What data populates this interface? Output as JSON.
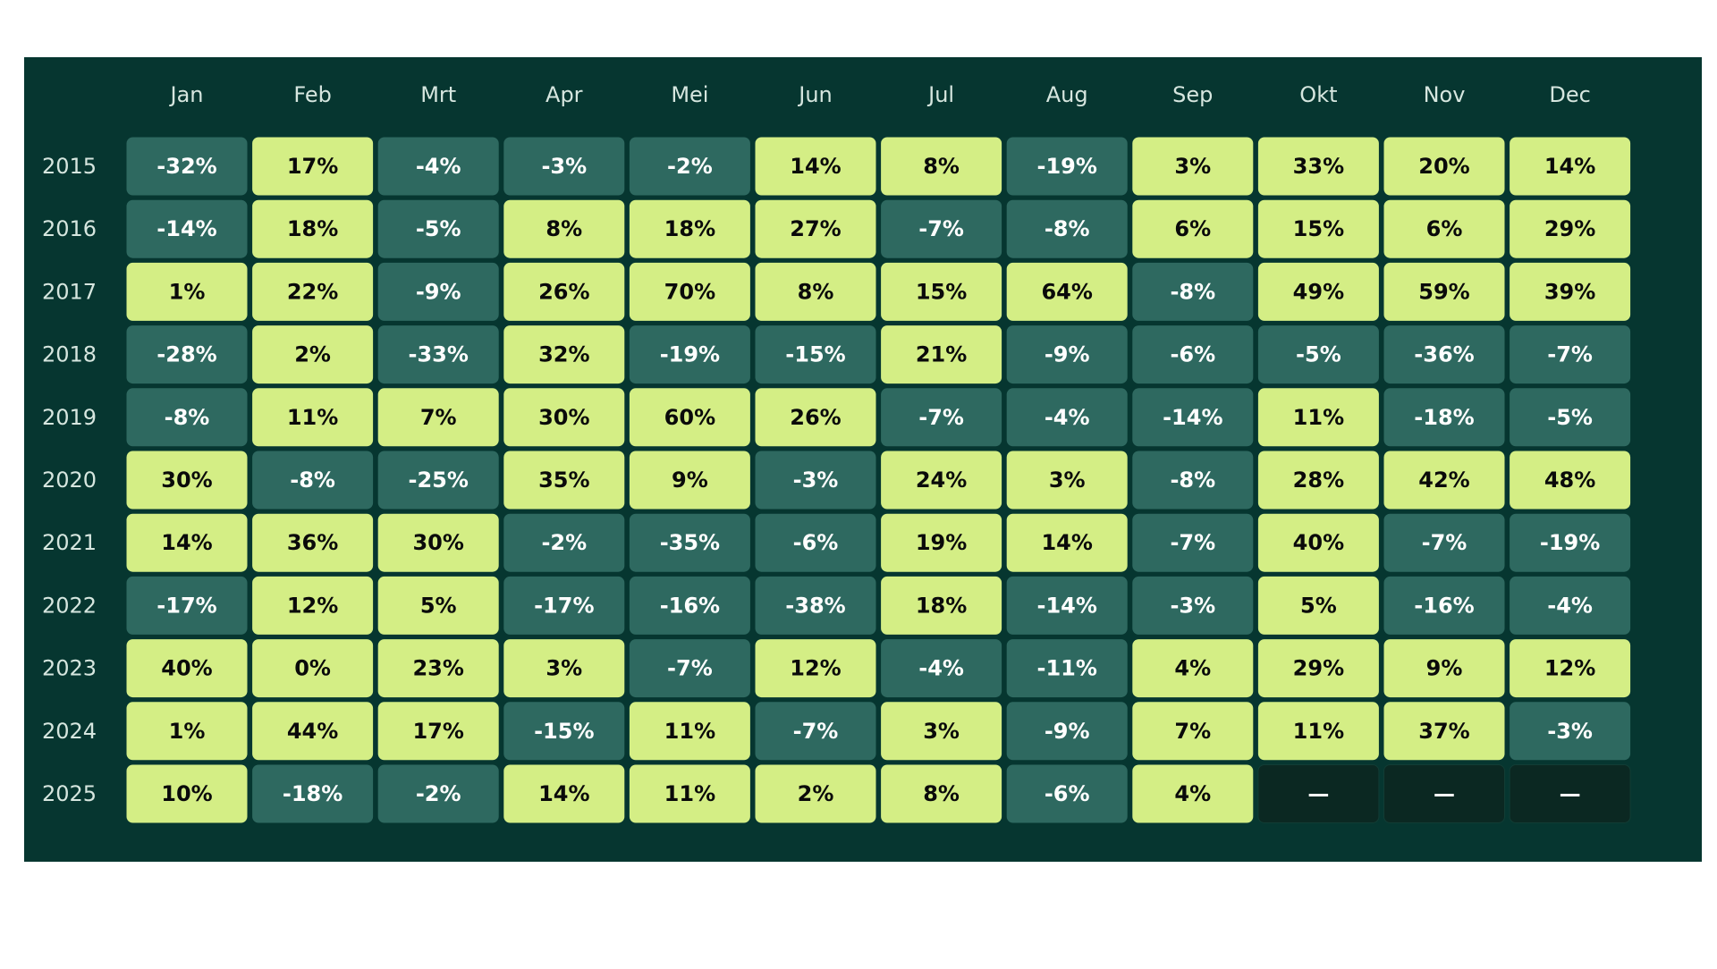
{
  "table": {
    "columns": [
      "Jan",
      "Feb",
      "Mrt",
      "Apr",
      "Mei",
      "Jun",
      "Jul",
      "Aug",
      "Sep",
      "Okt",
      "Nov",
      "Dec"
    ],
    "rows": [
      {
        "label": "2015",
        "cells": [
          "-32%",
          "17%",
          "-4%",
          "-3%",
          "-2%",
          "14%",
          "8%",
          "-19%",
          "3%",
          "33%",
          "20%",
          "14%"
        ]
      },
      {
        "label": "2016",
        "cells": [
          "-14%",
          "18%",
          "-5%",
          "8%",
          "18%",
          "27%",
          "-7%",
          "-8%",
          "6%",
          "15%",
          "6%",
          "29%"
        ]
      },
      {
        "label": "2017",
        "cells": [
          "1%",
          "22%",
          "-9%",
          "26%",
          "70%",
          "8%",
          "15%",
          "64%",
          "-8%",
          "49%",
          "59%",
          "39%"
        ]
      },
      {
        "label": "2018",
        "cells": [
          "-28%",
          "2%",
          "-33%",
          "32%",
          "-19%",
          "-15%",
          "21%",
          "-9%",
          "-6%",
          "-5%",
          "-36%",
          "-7%"
        ]
      },
      {
        "label": "2019",
        "cells": [
          "-8%",
          "11%",
          "7%",
          "30%",
          "60%",
          "26%",
          "-7%",
          "-4%",
          "-14%",
          "11%",
          "-18%",
          "-5%"
        ]
      },
      {
        "label": "2020",
        "cells": [
          "30%",
          "-8%",
          "-25%",
          "35%",
          "9%",
          "-3%",
          "24%",
          "3%",
          "-8%",
          "28%",
          "42%",
          "48%"
        ]
      },
      {
        "label": "2021",
        "cells": [
          "14%",
          "36%",
          "30%",
          "-2%",
          "-35%",
          "-6%",
          "19%",
          "14%",
          "-7%",
          "40%",
          "-7%",
          "-19%"
        ]
      },
      {
        "label": "2022",
        "cells": [
          "-17%",
          "12%",
          "5%",
          "-17%",
          "-16%",
          "-38%",
          "18%",
          "-14%",
          "-3%",
          "5%",
          "-16%",
          "-4%"
        ]
      },
      {
        "label": "2023",
        "cells": [
          "40%",
          "0%",
          "23%",
          "3%",
          "-7%",
          "12%",
          "-4%",
          "-11%",
          "4%",
          "29%",
          "9%",
          "12%"
        ]
      },
      {
        "label": "2024",
        "cells": [
          "1%",
          "44%",
          "17%",
          "-15%",
          "11%",
          "-7%",
          "3%",
          "-9%",
          "7%",
          "11%",
          "37%",
          "-3%"
        ]
      },
      {
        "label": "2025",
        "cells": [
          "10%",
          "-18%",
          "-2%",
          "14%",
          "11%",
          "2%",
          "8%",
          "-6%",
          "4%",
          "—",
          "—",
          "—"
        ]
      }
    ]
  }
}
